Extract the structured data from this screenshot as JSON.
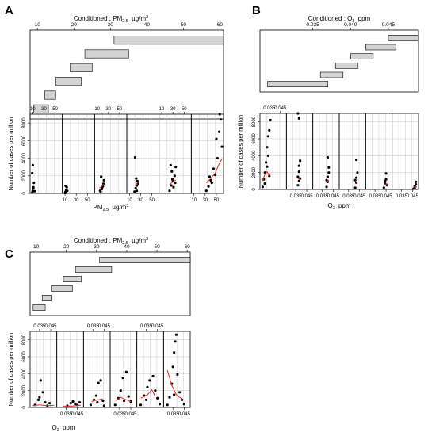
{
  "chart_data": [
    {
      "panel": "A",
      "type": "scatter",
      "title_prefix": "Conditioned : PM",
      "title_sub": "2.5",
      "title_units": "µg/m",
      "title_sup": "3",
      "given": {
        "ticks": [
          "10",
          "20",
          "30",
          "40",
          "50",
          "60"
        ],
        "range": [
          8,
          61
        ],
        "intervals": [
          [
            9,
            13
          ],
          [
            12,
            15
          ],
          [
            15,
            22
          ],
          [
            19,
            25
          ],
          [
            23,
            35
          ],
          [
            31,
            61
          ]
        ]
      },
      "x_ticks": [
        "10",
        "30",
        "50"
      ],
      "x_range": [
        8,
        60
      ],
      "ylabel": "Number of cases per million",
      "y_ticks": [
        "0",
        "2000",
        "4000",
        "6000",
        "8000"
      ],
      "ylim": [
        0,
        9000
      ],
      "xlabel_main": "PM",
      "xlabel_sub": "2.5",
      "xlabel_units": "µg/m",
      "xlabel_sup": "3",
      "layout": "two-row",
      "series": [
        {
          "points": [
            [
              9,
              100
            ],
            [
              10,
              300
            ],
            [
              11,
              700
            ],
            [
              12,
              1200
            ],
            [
              9,
              2300
            ],
            [
              10,
              3200
            ],
            [
              11,
              600
            ],
            [
              13,
              250
            ]
          ],
          "fit": []
        },
        {
          "points": [
            [
              10,
              50
            ],
            [
              11,
              200
            ],
            [
              12,
              400
            ],
            [
              13,
              700
            ],
            [
              11,
              850
            ],
            [
              14,
              300
            ],
            [
              12,
              150
            ]
          ],
          "fit": []
        },
        {
          "points": [
            [
              15,
              300
            ],
            [
              18,
              500
            ],
            [
              20,
              800
            ],
            [
              22,
              1500
            ],
            [
              17,
              1900
            ],
            [
              21,
              1100
            ],
            [
              19,
              700
            ],
            [
              16,
              200
            ]
          ],
          "fit": [
            [
              14,
              600
            ],
            [
              18,
              800
            ],
            [
              22,
              1100
            ]
          ]
        },
        {
          "points": [
            [
              19,
              200
            ],
            [
              21,
              600
            ],
            [
              23,
              900
            ],
            [
              24,
              1400
            ],
            [
              22,
              1700
            ],
            [
              20,
              4100
            ],
            [
              25,
              1100
            ],
            [
              23,
              300
            ]
          ],
          "fit": [
            [
              19,
              900
            ],
            [
              22,
              1000
            ],
            [
              25,
              1100
            ]
          ]
        },
        {
          "points": [
            [
              24,
              300
            ],
            [
              27,
              900
            ],
            [
              30,
              1400
            ],
            [
              33,
              2000
            ],
            [
              35,
              3000
            ],
            [
              26,
              3200
            ],
            [
              29,
              1600
            ],
            [
              31,
              700
            ],
            [
              34,
              1200
            ],
            [
              28,
              2500
            ]
          ],
          "fit": [
            [
              24,
              1000
            ],
            [
              29,
              1300
            ],
            [
              35,
              1500
            ]
          ]
        },
        {
          "points": [
            [
              32,
              300
            ],
            [
              36,
              800
            ],
            [
              40,
              1500
            ],
            [
              45,
              2800
            ],
            [
              50,
              6200
            ],
            [
              55,
              7000
            ],
            [
              58,
              8400
            ],
            [
              52,
              4000
            ],
            [
              48,
              2100
            ],
            [
              42,
              1200
            ],
            [
              56,
              9000
            ],
            [
              38,
              1900
            ],
            [
              60,
              5300
            ]
          ],
          "fit": [
            [
              32,
              1200
            ],
            [
              40,
              1700
            ],
            [
              48,
              2300
            ],
            [
              56,
              3500
            ],
            [
              60,
              3900
            ]
          ]
        }
      ]
    },
    {
      "panel": "B",
      "type": "scatter",
      "title_prefix": "Conditioned : O",
      "title_sub": "3",
      "title_units": "ppm",
      "given": {
        "ticks": [
          "0.035",
          "0.040",
          "0.045"
        ],
        "range": [
          0.028,
          0.049
        ],
        "intervals": [
          [
            0.029,
            0.037
          ],
          [
            0.036,
            0.039
          ],
          [
            0.038,
            0.041
          ],
          [
            0.04,
            0.043
          ],
          [
            0.042,
            0.046
          ],
          [
            0.045,
            0.049
          ]
        ]
      },
      "x_ticks": [
        "0.035",
        "0.045"
      ],
      "x_range": [
        0.028,
        0.049
      ],
      "ylabel": "Number of cases per million",
      "y_ticks": [
        "0",
        "2000",
        "4000",
        "6000",
        "8000"
      ],
      "ylim": [
        0,
        9000
      ],
      "xlabel_main": "O",
      "xlabel_sub": "3",
      "xlabel_units": "ppm",
      "layout": "one-row",
      "series": [
        {
          "points": [
            [
              0.029,
              300
            ],
            [
              0.03,
              1200
            ],
            [
              0.031,
              2000
            ],
            [
              0.032,
              3200
            ],
            [
              0.033,
              5000
            ],
            [
              0.034,
              6300
            ],
            [
              0.035,
              7000
            ],
            [
              0.036,
              8200
            ],
            [
              0.033,
              2700
            ],
            [
              0.031,
              700
            ],
            [
              0.035,
              1600
            ],
            [
              0.034,
              4000
            ]
          ],
          "fit": [
            [
              0.029,
              1000
            ],
            [
              0.031,
              1800
            ],
            [
              0.033,
              2100
            ],
            [
              0.035,
              1600
            ],
            [
              0.036,
              1900
            ]
          ]
        },
        {
          "points": [
            [
              0.037,
              500
            ],
            [
              0.038,
              1000
            ],
            [
              0.037,
              1500
            ],
            [
              0.038,
              2100
            ],
            [
              0.038,
              2800
            ],
            [
              0.039,
              3400
            ],
            [
              0.038,
              8400
            ],
            [
              0.037,
              9000
            ],
            [
              0.039,
              1300
            ]
          ],
          "fit": [
            [
              0.037,
              1200
            ],
            [
              0.039,
              1500
            ]
          ]
        },
        {
          "points": [
            [
              0.039,
              300
            ],
            [
              0.04,
              900
            ],
            [
              0.04,
              1500
            ],
            [
              0.041,
              2000
            ],
            [
              0.04,
              3800
            ],
            [
              0.041,
              2600
            ],
            [
              0.039,
              1100
            ]
          ],
          "fit": [
            [
              0.039,
              900
            ],
            [
              0.041,
              1100
            ]
          ]
        },
        {
          "points": [
            [
              0.041,
              200
            ],
            [
              0.042,
              800
            ],
            [
              0.042,
              1400
            ],
            [
              0.043,
              2000
            ],
            [
              0.042,
              3500
            ],
            [
              0.041,
              1100
            ]
          ],
          "fit": [
            [
              0.041,
              700
            ],
            [
              0.043,
              800
            ]
          ]
        },
        {
          "points": [
            [
              0.043,
              200
            ],
            [
              0.044,
              700
            ],
            [
              0.045,
              1200
            ],
            [
              0.045,
              1900
            ],
            [
              0.044,
              1000
            ],
            [
              0.046,
              500
            ]
          ],
          "fit": [
            [
              0.043,
              600
            ],
            [
              0.046,
              700
            ]
          ]
        },
        {
          "points": [
            [
              0.046,
              100
            ],
            [
              0.047,
              400
            ],
            [
              0.048,
              600
            ],
            [
              0.048,
              900
            ],
            [
              0.047,
              200
            ]
          ],
          "fit": [
            [
              0.046,
              300
            ],
            [
              0.049,
              300
            ]
          ]
        }
      ]
    },
    {
      "panel": "C",
      "type": "scatter",
      "title_prefix": "Conditioned : PM",
      "title_sub": "2.5",
      "title_units": "µg/m",
      "title_sup": "3",
      "given": {
        "ticks": [
          "10",
          "20",
          "30",
          "40",
          "50",
          "60"
        ],
        "range": [
          8,
          61
        ],
        "intervals": [
          [
            9,
            13
          ],
          [
            12,
            15
          ],
          [
            15,
            22
          ],
          [
            19,
            25
          ],
          [
            23,
            35
          ],
          [
            31,
            61
          ]
        ]
      },
      "x_ticks": [
        "0.035",
        "0.045"
      ],
      "x_range": [
        0.028,
        0.049
      ],
      "ylabel": "Number of cases per million",
      "y_ticks": [
        "0",
        "2000",
        "4000",
        "6000",
        "8000"
      ],
      "ylim": [
        0,
        9000
      ],
      "xlabel_main": "O",
      "xlabel_sub": "3",
      "xlabel_units": "ppm",
      "layout": "two-row",
      "series": [
        {
          "points": [
            [
              0.031,
              300
            ],
            [
              0.034,
              900
            ],
            [
              0.036,
              3200
            ],
            [
              0.038,
              1800
            ],
            [
              0.04,
              600
            ],
            [
              0.042,
              200
            ],
            [
              0.035,
              1200
            ],
            [
              0.044,
              500
            ]
          ],
          "fit": [
            [
              0.029,
              200
            ],
            [
              0.035,
              300
            ],
            [
              0.042,
              200
            ],
            [
              0.048,
              250
            ]
          ]
        },
        {
          "points": [
            [
              0.036,
              200
            ],
            [
              0.039,
              500
            ],
            [
              0.041,
              700
            ],
            [
              0.043,
              400
            ],
            [
              0.045,
              300
            ],
            [
              0.047,
              600
            ]
          ],
          "fit": [
            [
              0.032,
              150
            ],
            [
              0.04,
              150
            ],
            [
              0.048,
              250
            ]
          ]
        },
        {
          "points": [
            [
              0.033,
              300
            ],
            [
              0.036,
              900
            ],
            [
              0.038,
              1400
            ],
            [
              0.04,
              2900
            ],
            [
              0.042,
              3200
            ],
            [
              0.044,
              800
            ],
            [
              0.039,
              600
            ],
            [
              0.045,
              200
            ]
          ],
          "fit": [
            [
              0.034,
              700
            ],
            [
              0.039,
              900
            ],
            [
              0.044,
              1000
            ]
          ]
        },
        {
          "points": [
            [
              0.031,
              300
            ],
            [
              0.034,
              1100
            ],
            [
              0.036,
              2000
            ],
            [
              0.038,
              3500
            ],
            [
              0.041,
              4200
            ],
            [
              0.043,
              1300
            ],
            [
              0.045,
              700
            ],
            [
              0.039,
              800
            ]
          ],
          "fit": [
            [
              0.031,
              800
            ],
            [
              0.036,
              1200
            ],
            [
              0.041,
              900
            ],
            [
              0.045,
              700
            ]
          ]
        },
        {
          "points": [
            [
              0.03,
              300
            ],
            [
              0.033,
              1400
            ],
            [
              0.036,
              2400
            ],
            [
              0.038,
              3200
            ],
            [
              0.041,
              3700
            ],
            [
              0.043,
              2000
            ],
            [
              0.045,
              1100
            ],
            [
              0.047,
              400
            ],
            [
              0.035,
              900
            ]
          ],
          "fit": [
            [
              0.03,
              1100
            ],
            [
              0.036,
              1500
            ],
            [
              0.04,
              2100
            ],
            [
              0.043,
              1300
            ]
          ]
        },
        {
          "points": [
            [
              0.03,
              300
            ],
            [
              0.032,
              1200
            ],
            [
              0.034,
              2800
            ],
            [
              0.035,
              4800
            ],
            [
              0.036,
              6500
            ],
            [
              0.037,
              7800
            ],
            [
              0.038,
              8600
            ],
            [
              0.039,
              3900
            ],
            [
              0.041,
              1800
            ],
            [
              0.043,
              900
            ],
            [
              0.036,
              1500
            ],
            [
              0.045,
              400
            ]
          ],
          "fit": [
            [
              0.03,
              4400
            ],
            [
              0.034,
              2600
            ],
            [
              0.038,
              1500
            ],
            [
              0.043,
              1000
            ]
          ]
        }
      ]
    }
  ]
}
